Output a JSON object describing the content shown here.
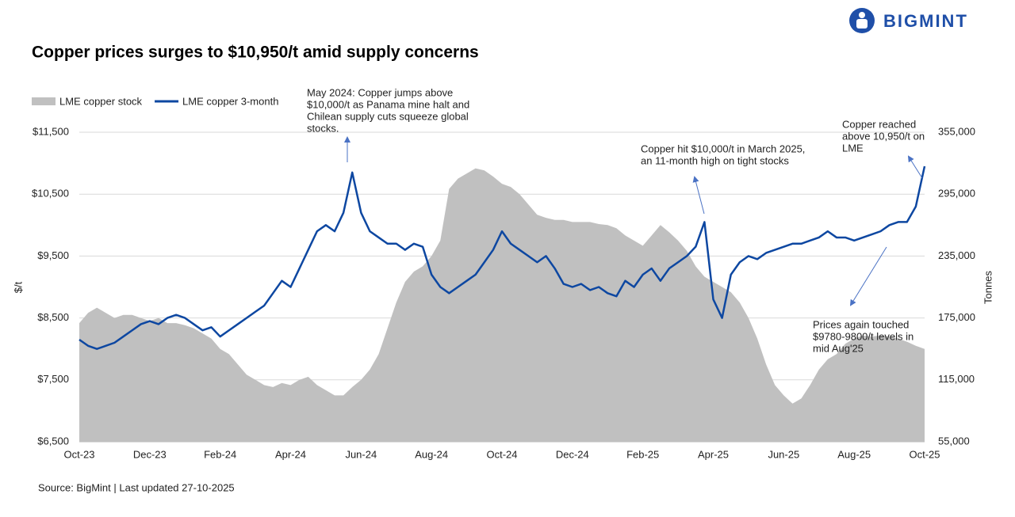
{
  "brand": "BIGMINT",
  "chart_data": {
    "type": "line-area",
    "title": "Copper prices surges  to $10,950/t amid supply concerns",
    "source": "Source: BigMint | Last updated 27-10-2025",
    "y_label": "$/t",
    "y2_label": "Tonnes",
    "categories": [
      "Oct-23",
      null,
      null,
      null,
      null,
      null,
      null,
      null,
      "Dec-23",
      null,
      null,
      null,
      null,
      null,
      null,
      null,
      "Feb-24",
      null,
      null,
      null,
      null,
      null,
      null,
      null,
      "Apr-24",
      null,
      null,
      null,
      null,
      null,
      null,
      null,
      "Jun-24",
      null,
      null,
      null,
      null,
      null,
      null,
      null,
      "Aug-24",
      null,
      null,
      null,
      null,
      null,
      null,
      null,
      "Oct-24",
      null,
      null,
      null,
      null,
      null,
      null,
      null,
      "Dec-24",
      null,
      null,
      null,
      null,
      null,
      null,
      null,
      "Feb-25",
      null,
      null,
      null,
      null,
      null,
      null,
      null,
      "Apr-25",
      null,
      null,
      null,
      null,
      null,
      null,
      null,
      "Jun-25",
      null,
      null,
      null,
      null,
      null,
      null,
      null,
      "Aug-25",
      null,
      null,
      null,
      null,
      null,
      null,
      null,
      "Oct-25"
    ],
    "series": [
      {
        "name": "LME copper stock",
        "color": "#c0c0c0",
        "kind": "area",
        "axis": "y2",
        "values": [
          170000,
          180000,
          185000,
          180000,
          175000,
          178000,
          178000,
          175000,
          172000,
          175000,
          170000,
          170000,
          168000,
          165000,
          160000,
          155000,
          145000,
          140000,
          130000,
          120000,
          115000,
          110000,
          108000,
          112000,
          110000,
          115000,
          118000,
          110000,
          105000,
          100000,
          100000,
          108000,
          115000,
          125000,
          140000,
          165000,
          190000,
          210000,
          220000,
          225000,
          235000,
          250000,
          300000,
          310000,
          315000,
          320000,
          318000,
          312000,
          305000,
          302000,
          295000,
          285000,
          275000,
          272000,
          270000,
          270000,
          268000,
          268000,
          268000,
          266000,
          265000,
          262000,
          255000,
          250000,
          245000,
          255000,
          265000,
          258000,
          250000,
          240000,
          225000,
          215000,
          210000,
          205000,
          200000,
          190000,
          175000,
          155000,
          130000,
          110000,
          100000,
          92000,
          97000,
          110000,
          125000,
          135000,
          140000,
          150000,
          155000,
          158000,
          157000,
          158000,
          157000,
          155000,
          152000,
          148000,
          145000
        ]
      },
      {
        "name": "LME copper 3-month",
        "color": "#0d47a1",
        "kind": "line",
        "values": [
          8150,
          8050,
          8000,
          8050,
          8100,
          8200,
          8300,
          8400,
          8450,
          8400,
          8500,
          8550,
          8500,
          8400,
          8300,
          8350,
          8200,
          8300,
          8400,
          8500,
          8600,
          8700,
          8900,
          9100,
          9000,
          9300,
          9600,
          9900,
          10000,
          9900,
          10200,
          10850,
          10200,
          9900,
          9800,
          9700,
          9700,
          9600,
          9700,
          9650,
          9200,
          9000,
          8900,
          9000,
          9100,
          9200,
          9400,
          9600,
          9900,
          9700,
          9600,
          9500,
          9400,
          9500,
          9300,
          9050,
          9000,
          9050,
          8950,
          9000,
          8900,
          8850,
          9100,
          9000,
          9200,
          9300,
          9100,
          9300,
          9400,
          9500,
          9650,
          10050,
          8800,
          8500,
          9200,
          9400,
          9500,
          9450,
          9550,
          9600,
          9650,
          9700,
          9700,
          9750,
          9800,
          9900,
          9800,
          9800,
          9750,
          9800,
          9850,
          9900,
          10000,
          10050,
          10050,
          10300,
          10950
        ]
      }
    ],
    "ylim": [
      6500,
      11500
    ],
    "yticks": [
      {
        "value": 6500,
        "label": "$6,500"
      },
      {
        "value": 7500,
        "label": "$7,500"
      },
      {
        "value": 8500,
        "label": "$8,500"
      },
      {
        "value": 9500,
        "label": "$9,500"
      },
      {
        "value": 10500,
        "label": "$10,500"
      },
      {
        "value": 11500,
        "label": "$11,500"
      }
    ],
    "y2lim": [
      55000,
      355000
    ],
    "y2ticks": [
      {
        "value": 55000,
        "label": "55,000"
      },
      {
        "value": 115000,
        "label": "115,000"
      },
      {
        "value": 175000,
        "label": "175,000"
      },
      {
        "value": 235000,
        "label": "235,000"
      },
      {
        "value": 295000,
        "label": "295,000"
      },
      {
        "value": 355000,
        "label": "355,000"
      }
    ],
    "grid": true,
    "annotations": [
      {
        "lines": [
          "May 2024: Copper jumps above",
          "$10,000/t as Panama mine halt and",
          "Chilean supply cuts squeeze global",
          "stocks."
        ]
      },
      {
        "lines": [
          "Copper hit $10,000/t in March 2025,",
          "an 11-month high on tight stocks"
        ]
      },
      {
        "lines": [
          "Copper reached",
          "above 10,950/t on",
          "LME"
        ]
      },
      {
        "lines": [
          "Prices again touched",
          "$9780-9800/t levels in",
          "mid Aug'25"
        ]
      }
    ]
  }
}
